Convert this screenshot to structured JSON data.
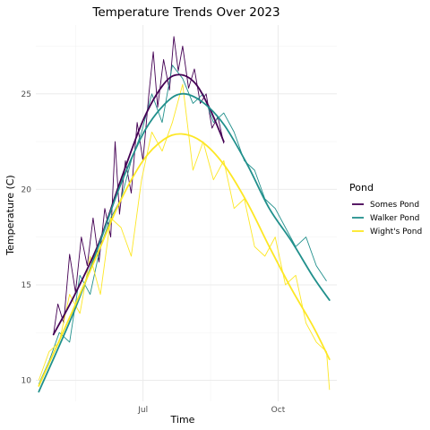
{
  "chart_data": {
    "type": "line",
    "title": "Temperature Trends Over 2023",
    "xlabel": "Time",
    "ylabel": "Temperature (C)",
    "x_ticks": [
      {
        "date": "2023-07-01",
        "label": "Jul"
      },
      {
        "date": "2023-10-01",
        "label": "Oct"
      }
    ],
    "xlim": [
      "2023-04-19",
      "2023-11-10"
    ],
    "ylim": [
      8.9,
      28.6
    ],
    "y_ticks": [
      10,
      15,
      20,
      25
    ],
    "grid": true,
    "legend": {
      "title": "Pond",
      "placement": "right"
    },
    "series": [
      {
        "name": "Somes Pond",
        "color": "#440154",
        "trend": [
          {
            "date": "2023-05-01",
            "y": 12.4
          },
          {
            "date": "2023-05-15",
            "y": 14.4
          },
          {
            "date": "2023-06-01",
            "y": 17.2
          },
          {
            "date": "2023-06-15",
            "y": 20.3
          },
          {
            "date": "2023-07-01",
            "y": 23.6
          },
          {
            "date": "2023-07-15",
            "y": 25.5
          },
          {
            "date": "2023-07-25",
            "y": 26.0
          },
          {
            "date": "2023-08-05",
            "y": 25.6
          },
          {
            "date": "2023-08-15",
            "y": 24.3
          },
          {
            "date": "2023-08-25",
            "y": 22.5
          }
        ],
        "daily": [
          {
            "date": "2023-05-01",
            "y": 12.4
          },
          {
            "date": "2023-05-04",
            "y": 14.0
          },
          {
            "date": "2023-05-08",
            "y": 13.0
          },
          {
            "date": "2023-05-12",
            "y": 16.6
          },
          {
            "date": "2023-05-16",
            "y": 14.6
          },
          {
            "date": "2023-05-20",
            "y": 17.5
          },
          {
            "date": "2023-05-24",
            "y": 16.0
          },
          {
            "date": "2023-05-28",
            "y": 18.5
          },
          {
            "date": "2023-06-01",
            "y": 16.2
          },
          {
            "date": "2023-06-05",
            "y": 19.0
          },
          {
            "date": "2023-06-09",
            "y": 17.5
          },
          {
            "date": "2023-06-12",
            "y": 22.5
          },
          {
            "date": "2023-06-15",
            "y": 18.7
          },
          {
            "date": "2023-06-19",
            "y": 21.5
          },
          {
            "date": "2023-06-23",
            "y": 19.8
          },
          {
            "date": "2023-06-27",
            "y": 23.5
          },
          {
            "date": "2023-07-01",
            "y": 21.5
          },
          {
            "date": "2023-07-05",
            "y": 25.0
          },
          {
            "date": "2023-07-08",
            "y": 27.2
          },
          {
            "date": "2023-07-11",
            "y": 24.3
          },
          {
            "date": "2023-07-15",
            "y": 26.8
          },
          {
            "date": "2023-07-19",
            "y": 25.2
          },
          {
            "date": "2023-07-22",
            "y": 28.0
          },
          {
            "date": "2023-07-25",
            "y": 26.2
          },
          {
            "date": "2023-07-28",
            "y": 27.5
          },
          {
            "date": "2023-08-01",
            "y": 25.3
          },
          {
            "date": "2023-08-05",
            "y": 26.3
          },
          {
            "date": "2023-08-09",
            "y": 24.5
          },
          {
            "date": "2023-08-13",
            "y": 25.0
          },
          {
            "date": "2023-08-17",
            "y": 23.2
          },
          {
            "date": "2023-08-21",
            "y": 23.8
          },
          {
            "date": "2023-08-25",
            "y": 22.4
          }
        ]
      },
      {
        "name": "Walker Pond",
        "color": "#21908c",
        "trend": [
          {
            "date": "2023-04-21",
            "y": 9.4
          },
          {
            "date": "2023-05-15",
            "y": 13.6
          },
          {
            "date": "2023-06-01",
            "y": 17.1
          },
          {
            "date": "2023-06-15",
            "y": 20.1
          },
          {
            "date": "2023-07-01",
            "y": 22.9
          },
          {
            "date": "2023-07-15",
            "y": 24.4
          },
          {
            "date": "2023-07-27",
            "y": 25.0
          },
          {
            "date": "2023-08-10",
            "y": 24.6
          },
          {
            "date": "2023-08-25",
            "y": 23.4
          },
          {
            "date": "2023-09-10",
            "y": 21.3
          },
          {
            "date": "2023-09-25",
            "y": 19.0
          },
          {
            "date": "2023-10-10",
            "y": 17.3
          },
          {
            "date": "2023-10-25",
            "y": 15.4
          },
          {
            "date": "2023-11-05",
            "y": 14.2
          }
        ],
        "daily": [
          {
            "date": "2023-04-21",
            "y": 9.8
          },
          {
            "date": "2023-04-28",
            "y": 11.0
          },
          {
            "date": "2023-05-05",
            "y": 12.5
          },
          {
            "date": "2023-05-12",
            "y": 12.0
          },
          {
            "date": "2023-05-19",
            "y": 15.5
          },
          {
            "date": "2023-05-26",
            "y": 14.5
          },
          {
            "date": "2023-06-02",
            "y": 17.0
          },
          {
            "date": "2023-06-09",
            "y": 18.5
          },
          {
            "date": "2023-06-16",
            "y": 19.5
          },
          {
            "date": "2023-06-23",
            "y": 21.5
          },
          {
            "date": "2023-06-30",
            "y": 23.0
          },
          {
            "date": "2023-07-07",
            "y": 25.0
          },
          {
            "date": "2023-07-14",
            "y": 23.5
          },
          {
            "date": "2023-07-21",
            "y": 26.5
          },
          {
            "date": "2023-07-28",
            "y": 25.8
          },
          {
            "date": "2023-08-04",
            "y": 24.5
          },
          {
            "date": "2023-08-11",
            "y": 25.0
          },
          {
            "date": "2023-08-18",
            "y": 23.5
          },
          {
            "date": "2023-08-25",
            "y": 24.0
          },
          {
            "date": "2023-09-01",
            "y": 23.0
          },
          {
            "date": "2023-09-08",
            "y": 21.5
          },
          {
            "date": "2023-09-15",
            "y": 21.0
          },
          {
            "date": "2023-09-22",
            "y": 19.5
          },
          {
            "date": "2023-09-29",
            "y": 19.0
          },
          {
            "date": "2023-10-06",
            "y": 18.0
          },
          {
            "date": "2023-10-13",
            "y": 17.0
          },
          {
            "date": "2023-10-20",
            "y": 17.5
          },
          {
            "date": "2023-10-27",
            "y": 16.0
          },
          {
            "date": "2023-11-03",
            "y": 15.2
          }
        ]
      },
      {
        "name": "Wight's Pond",
        "color": "#fde725",
        "trend": [
          {
            "date": "2023-04-21",
            "y": 9.7
          },
          {
            "date": "2023-05-15",
            "y": 13.8
          },
          {
            "date": "2023-06-01",
            "y": 16.8
          },
          {
            "date": "2023-06-15",
            "y": 19.3
          },
          {
            "date": "2023-07-01",
            "y": 21.5
          },
          {
            "date": "2023-07-15",
            "y": 22.6
          },
          {
            "date": "2023-07-27",
            "y": 22.9
          },
          {
            "date": "2023-08-10",
            "y": 22.5
          },
          {
            "date": "2023-08-25",
            "y": 21.3
          },
          {
            "date": "2023-09-10",
            "y": 19.3
          },
          {
            "date": "2023-09-25",
            "y": 17.0
          },
          {
            "date": "2023-10-10",
            "y": 14.8
          },
          {
            "date": "2023-10-25",
            "y": 12.8
          },
          {
            "date": "2023-11-05",
            "y": 11.1
          }
        ],
        "daily": [
          {
            "date": "2023-04-21",
            "y": 10.0
          },
          {
            "date": "2023-04-28",
            "y": 11.5
          },
          {
            "date": "2023-05-05",
            "y": 12.0
          },
          {
            "date": "2023-05-12",
            "y": 14.5
          },
          {
            "date": "2023-05-19",
            "y": 13.5
          },
          {
            "date": "2023-05-26",
            "y": 16.5
          },
          {
            "date": "2023-06-02",
            "y": 14.5
          },
          {
            "date": "2023-06-09",
            "y": 18.5
          },
          {
            "date": "2023-06-16",
            "y": 18.0
          },
          {
            "date": "2023-06-23",
            "y": 16.5
          },
          {
            "date": "2023-06-30",
            "y": 20.5
          },
          {
            "date": "2023-07-07",
            "y": 23.0
          },
          {
            "date": "2023-07-14",
            "y": 22.0
          },
          {
            "date": "2023-07-21",
            "y": 23.5
          },
          {
            "date": "2023-07-28",
            "y": 25.5
          },
          {
            "date": "2023-08-04",
            "y": 21.0
          },
          {
            "date": "2023-08-11",
            "y": 22.5
          },
          {
            "date": "2023-08-18",
            "y": 20.5
          },
          {
            "date": "2023-08-25",
            "y": 21.5
          },
          {
            "date": "2023-09-01",
            "y": 19.0
          },
          {
            "date": "2023-09-08",
            "y": 19.5
          },
          {
            "date": "2023-09-15",
            "y": 17.0
          },
          {
            "date": "2023-09-22",
            "y": 16.5
          },
          {
            "date": "2023-09-29",
            "y": 17.5
          },
          {
            "date": "2023-10-06",
            "y": 15.0
          },
          {
            "date": "2023-10-13",
            "y": 15.5
          },
          {
            "date": "2023-10-20",
            "y": 13.0
          },
          {
            "date": "2023-10-27",
            "y": 12.0
          },
          {
            "date": "2023-11-03",
            "y": 11.5
          },
          {
            "date": "2023-11-05",
            "y": 9.5
          }
        ]
      }
    ]
  }
}
